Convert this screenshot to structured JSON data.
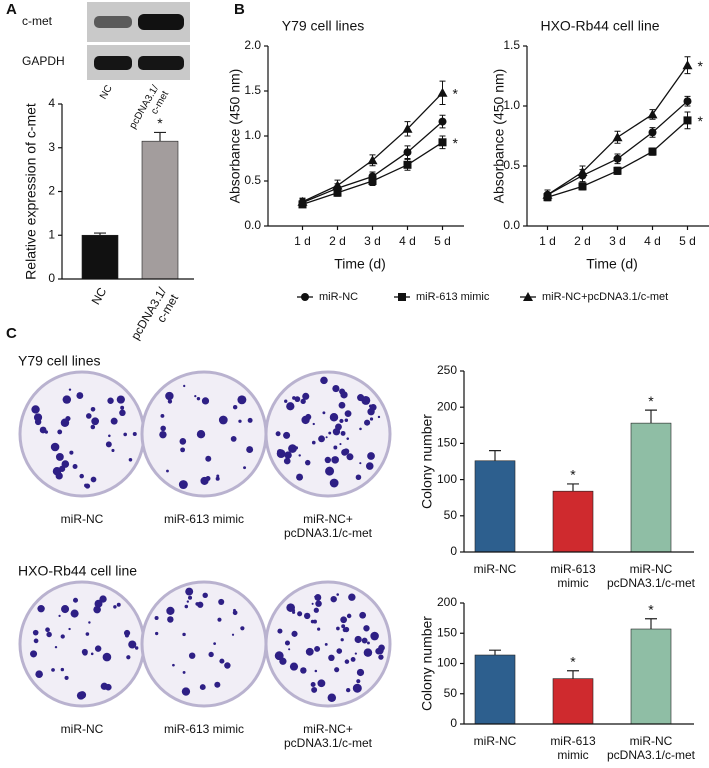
{
  "panels": {
    "a": "A",
    "b": "B",
    "c": "C"
  },
  "blot": {
    "rows": [
      "c-met",
      "GAPDH"
    ],
    "lanes": [
      "NC",
      "pcDNA3.1/\nc-met"
    ]
  },
  "colony_images": [
    {
      "title": "Y79 cell lines",
      "labels": [
        "miR-NC",
        "miR-613 mimic",
        "miR-NC+\npcDNA3.1/c-met"
      ]
    },
    {
      "title": "HXO-Rb44 cell line",
      "labels": [
        "miR-NC",
        "miR-613 mimic",
        "miR-NC+\npcDNA3.1/c-met"
      ]
    }
  ],
  "chart_data": [
    {
      "type": "bar",
      "ylabel": "Relative expression of c-met",
      "categories": [
        "NC",
        "pcDNA3.1/\nc-met"
      ],
      "values": [
        1.0,
        3.15
      ],
      "errors": [
        0.05,
        0.2
      ],
      "colors": [
        "#111111",
        "#a39d9d"
      ],
      "annotations": [
        null,
        "*"
      ],
      "ylim": [
        0,
        4
      ],
      "yticks": [
        0,
        1,
        2,
        3,
        4
      ]
    },
    {
      "type": "line",
      "title": "Y79 cell lines",
      "xlabel": "Time (d)",
      "ylabel": "Absorbance (450 nm)",
      "categories": [
        "1 d",
        "2 d",
        "3 d",
        "4 d",
        "5 d"
      ],
      "ylim": [
        0,
        2
      ],
      "yticks": [
        {
          "value": 0,
          "label": "0.0"
        },
        {
          "value": 0.5,
          "label": "0.5"
        },
        {
          "value": 1,
          "label": "1.0"
        },
        {
          "value": 1.5,
          "label": "1.5"
        },
        {
          "value": 2,
          "label": "2.0"
        }
      ],
      "series": [
        {
          "name": "miR-NC",
          "marker": "circle",
          "color": "#111111",
          "values": [
            0.26,
            0.42,
            0.55,
            0.82,
            1.16
          ],
          "errors": [
            0.04,
            0.05,
            0.05,
            0.07,
            0.07
          ]
        },
        {
          "name": "miR-613 mimic",
          "marker": "square",
          "color": "#111111",
          "values": [
            0.24,
            0.37,
            0.5,
            0.68,
            0.93
          ],
          "errors": [
            0.03,
            0.04,
            0.05,
            0.06,
            0.07
          ],
          "end_label": "*"
        },
        {
          "name": "miR-NC+pcDNA3.1/c-met",
          "marker": "triangle",
          "color": "#111111",
          "values": [
            0.27,
            0.45,
            0.73,
            1.08,
            1.48
          ],
          "errors": [
            0.04,
            0.06,
            0.06,
            0.08,
            0.13
          ],
          "end_label": "*"
        }
      ]
    },
    {
      "type": "line",
      "title": "HXO-Rb44 cell line",
      "xlabel": "Time (d)",
      "ylabel": "Absorbance (450 nm)",
      "categories": [
        "1 d",
        "2 d",
        "3 d",
        "4 d",
        "5 d"
      ],
      "ylim": [
        0,
        1.5
      ],
      "yticks": [
        {
          "value": 0,
          "label": "0.0"
        },
        {
          "value": 0.5,
          "label": "0.5"
        },
        {
          "value": 1,
          "label": "1.0"
        },
        {
          "value": 1.5,
          "label": "1.5"
        }
      ],
      "series": [
        {
          "name": "miR-NC",
          "marker": "circle",
          "color": "#111111",
          "values": [
            0.26,
            0.42,
            0.56,
            0.78,
            1.04
          ],
          "errors": [
            0.04,
            0.05,
            0.04,
            0.04,
            0.04
          ]
        },
        {
          "name": "miR-613 mimic",
          "marker": "square",
          "color": "#111111",
          "values": [
            0.24,
            0.33,
            0.46,
            0.62,
            0.88
          ],
          "errors": [
            0.03,
            0.03,
            0.03,
            0.03,
            0.07
          ],
          "end_label": "*"
        },
        {
          "name": "miR-NC+pcDNA3.1/c-met",
          "marker": "triangle",
          "color": "#111111",
          "values": [
            0.26,
            0.45,
            0.74,
            0.93,
            1.34
          ],
          "errors": [
            0.04,
            0.05,
            0.05,
            0.04,
            0.07
          ],
          "end_label": "*"
        }
      ]
    },
    {
      "type": "bar",
      "ylabel": "Colony number",
      "categories": [
        "miR-NC",
        "miR-613\nmimic",
        "miR-NC\npcDNA3.1/c-met"
      ],
      "values": [
        126,
        84,
        178
      ],
      "errors": [
        14,
        10,
        18
      ],
      "colors": [
        "#2d5f8e",
        "#cf2a2e",
        "#8fbea5"
      ],
      "annotations": [
        null,
        "*",
        "*"
      ],
      "ylim": [
        0,
        250
      ],
      "yticks": [
        0,
        50,
        100,
        150,
        200,
        250
      ]
    },
    {
      "type": "bar",
      "ylabel": "Colony number",
      "categories": [
        "miR-NC",
        "miR-613\nmimic",
        "miR-NC\npcDNA3.1/c-met"
      ],
      "values": [
        114,
        75,
        157
      ],
      "errors": [
        8,
        13,
        17
      ],
      "colors": [
        "#2d5f8e",
        "#cf2a2e",
        "#8fbea5"
      ],
      "annotations": [
        null,
        "*",
        "*"
      ],
      "ylim": [
        0,
        200
      ],
      "yticks": [
        0,
        50,
        100,
        150,
        200
      ]
    }
  ]
}
